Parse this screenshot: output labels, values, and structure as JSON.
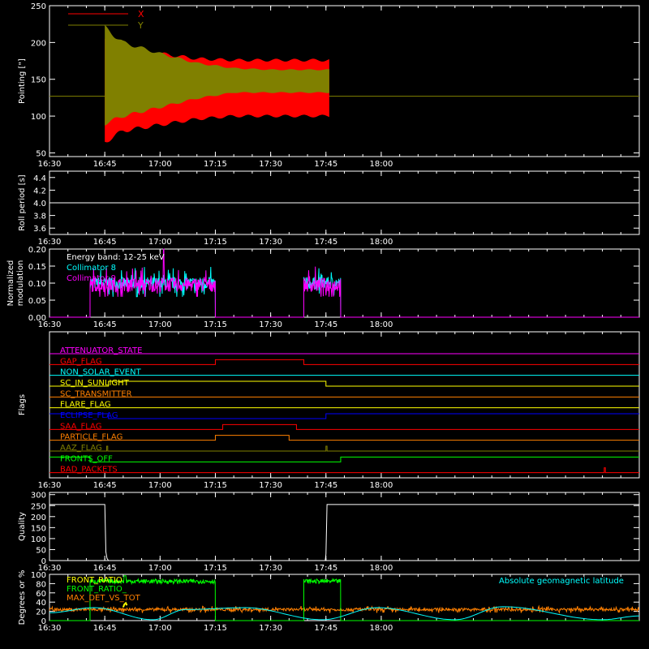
{
  "chart_data": [
    {
      "id": "pointing",
      "type": "area",
      "ylabel": "Pointing [\"]",
      "ylim": [
        45,
        250
      ],
      "yticks": [
        "50",
        "100",
        "150",
        "200",
        "250"
      ],
      "ytick_values": [
        50,
        100,
        150,
        200,
        250
      ],
      "xlim": [
        990,
        1150
      ],
      "xticks": [
        "16:30",
        "16:45",
        "17:00",
        "17:15",
        "17:30",
        "17:45",
        "18:00"
      ],
      "xtick_values": [
        990,
        1005,
        1020,
        1035,
        1050,
        1065,
        1080
      ],
      "baseline": 127,
      "colors": {
        "X": "#ff0000",
        "Y": "#808000",
        "baseline": "#808000"
      },
      "legend": [
        "X",
        "Y"
      ],
      "legend_placement": "top-left",
      "series": [
        {
          "name": "X",
          "t": [
            1005,
            1010,
            1020,
            1030,
            1040,
            1050,
            1060,
            1066
          ],
          "upper": [
            205,
            190,
            185,
            178,
            176,
            176,
            176,
            176
          ],
          "lower": [
            65,
            80,
            88,
            96,
            100,
            100,
            100,
            100
          ]
        },
        {
          "name": "Y",
          "t": [
            1005,
            1010,
            1020,
            1030,
            1040,
            1050,
            1060,
            1066
          ],
          "upper": [
            220,
            200,
            185,
            172,
            165,
            163,
            163,
            163
          ],
          "lower": [
            90,
            100,
            112,
            124,
            132,
            132,
            132,
            132
          ]
        }
      ]
    },
    {
      "id": "roll",
      "type": "line",
      "ylabel": "Roll period [s]",
      "ylim": [
        3.5,
        4.5
      ],
      "yticks": [
        "3.6",
        "3.8",
        "4.0",
        "4.2",
        "4.4"
      ],
      "ytick_values": [
        3.6,
        3.8,
        4.0,
        4.2,
        4.4
      ],
      "xticks": [
        "16:30",
        "16:45",
        "17:00",
        "17:15",
        "17:30",
        "17:45",
        "18:00"
      ],
      "xtick_values": [
        990,
        1005,
        1020,
        1035,
        1050,
        1065,
        1080
      ],
      "series": [
        {
          "name": "",
          "x": [
            990,
            1150
          ],
          "y": [
            4.0,
            4.0
          ],
          "color": "#ffffff"
        }
      ]
    },
    {
      "id": "modulation",
      "type": "line",
      "ylabel": "Normalized modulation",
      "ylim": [
        0,
        0.2
      ],
      "yticks": [
        "0.00",
        "0.05",
        "0.10",
        "0.15",
        "0.20"
      ],
      "ytick_values": [
        0,
        0.05,
        0.1,
        0.15,
        0.2
      ],
      "xticks": [
        "16:30",
        "16:45",
        "17:00",
        "17:15",
        "17:30",
        "17:45",
        "18:00"
      ],
      "xtick_values": [
        990,
        1005,
        1020,
        1035,
        1050,
        1065,
        1080
      ],
      "annotation": "Energy band: 12-25 keV",
      "legend_placement": "top-left",
      "series": [
        {
          "name": "Collimator 8",
          "color": "#00ffff",
          "segments": [
            [
              1001,
              1035,
              0.1
            ],
            [
              1059,
              1069,
              0.1
            ]
          ],
          "noise": 0.03
        },
        {
          "name": "Collimator 9",
          "color": "#ff00ff",
          "segments": [
            [
              1001,
              1035,
              0.095
            ],
            [
              1059,
              1069,
              0.095
            ]
          ],
          "noise": 0.035,
          "spike": [
            1021,
            0.2
          ]
        }
      ]
    },
    {
      "id": "flags",
      "type": "line",
      "ylabel": "Flags",
      "xticks": [
        "16:30",
        "16:45",
        "17:00",
        "17:15",
        "17:30",
        "17:45",
        "18:00"
      ],
      "xtick_values": [
        990,
        1005,
        1020,
        1035,
        1050,
        1065,
        1080
      ],
      "series": [
        {
          "name": "ATTENUATOR_STATE",
          "color": "#ff00ff",
          "steps": [
            [
              990,
              0
            ],
            [
              1150,
              0
            ]
          ]
        },
        {
          "name": "GAP_FLAG",
          "color": "#ff0000",
          "steps": [
            [
              990,
              0
            ],
            [
              1035,
              1
            ],
            [
              1059,
              0
            ]
          ]
        },
        {
          "name": "NON_SOLAR_EVENT",
          "color": "#00ffff",
          "steps": [
            [
              990,
              0
            ],
            [
              1150,
              0
            ]
          ]
        },
        {
          "name": "SC_IN_SUNLIGHT",
          "color": "#ffff00",
          "steps": [
            [
              990,
              0
            ],
            [
              1006,
              1
            ],
            [
              1065,
              0
            ]
          ]
        },
        {
          "name": "SC_TRANSMITTER",
          "color": "#ff8000",
          "steps": [
            [
              990,
              0
            ],
            [
              1150,
              0
            ]
          ]
        },
        {
          "name": "FLARE_FLAG",
          "color": "#ffff00",
          "steps": [
            [
              990,
              0
            ],
            [
              1150,
              0
            ]
          ]
        },
        {
          "name": "ECLIPSE_FLAG",
          "color": "#0000ff",
          "steps": [
            [
              990,
              1
            ],
            [
              1006,
              0
            ],
            [
              1065,
              1
            ]
          ]
        },
        {
          "name": "SAA_FLAG",
          "color": "#ff0000",
          "steps": [
            [
              990,
              0
            ],
            [
              1037,
              1
            ],
            [
              1057,
              0
            ]
          ]
        },
        {
          "name": "PARTICLE_FLAG",
          "color": "#ff8000",
          "steps": [
            [
              990,
              0
            ],
            [
              1035,
              1
            ],
            [
              1055,
              0
            ]
          ]
        },
        {
          "name": "AAZ_FLAG",
          "color": "#808000",
          "steps": [
            [
              990,
              0
            ],
            [
              1005.5,
              1
            ],
            [
              1005.8,
              0
            ],
            [
              1065.0,
              1
            ],
            [
              1065.3,
              0
            ]
          ]
        },
        {
          "name": "FRONTS_OFF",
          "color": "#00ff00",
          "steps": [
            [
              990,
              1
            ],
            [
              1001,
              0
            ],
            [
              1069,
              1
            ]
          ]
        },
        {
          "name": "BAD_PACKETS",
          "color": "#ff0000",
          "steps": [
            [
              990,
              0
            ],
            [
              1140.5,
              1
            ],
            [
              1140.8,
              0
            ]
          ]
        }
      ]
    },
    {
      "id": "quality",
      "type": "line",
      "ylabel": "Quality",
      "ylim": [
        0,
        310
      ],
      "yticks": [
        "0",
        "50",
        "100",
        "150",
        "200",
        "250",
        "300"
      ],
      "ytick_values": [
        0,
        50,
        100,
        150,
        200,
        250,
        300
      ],
      "xticks": [
        "16:30",
        "16:45",
        "17:00",
        "17:15",
        "17:30",
        "17:45",
        "18:00"
      ],
      "xtick_values": [
        990,
        1005,
        1020,
        1035,
        1050,
        1065,
        1080
      ],
      "series": [
        {
          "name": "",
          "color": "#ffffff",
          "x": [
            990,
            1005,
            1005.3,
            1005.6,
            1006,
            1064.8,
            1065,
            1065.3,
            1150
          ],
          "y": [
            255,
            255,
            40,
            10,
            0,
            0,
            30,
            255,
            255
          ]
        }
      ]
    },
    {
      "id": "ratios",
      "type": "line",
      "ylabel": "Degrees or %",
      "ylim": [
        0,
        100
      ],
      "yticks": [
        "0",
        "20",
        "40",
        "60",
        "80",
        "100"
      ],
      "ytick_values": [
        0,
        20,
        40,
        60,
        80,
        100
      ],
      "xticks": [
        "16:30",
        "16:45",
        "17:00",
        "17:15",
        "17:30",
        "17:45",
        "18:00"
      ],
      "xtick_values": [
        990,
        1005,
        1020,
        1035,
        1050,
        1065,
        1080
      ],
      "annotation": "Absolute geomagnetic latitude",
      "legend_placement": "top-left",
      "series": [
        {
          "name": "FRONT_RATIO",
          "color": "#ffff00",
          "points": [
            [
              1010,
              29
            ],
            [
              1010.3,
              35
            ],
            [
              1010.7,
              38
            ],
            [
              1011,
              33
            ]
          ]
        },
        {
          "name": "FRONT_RATIO_",
          "color": "#00ff00",
          "segments": [
            [
              1001,
              1035,
              85
            ],
            [
              1059,
              1069,
              85
            ]
          ],
          "noise": 8
        },
        {
          "name": "MAX_DET_VS_TOT",
          "color": "#ff8000",
          "base": 24,
          "noise": 5
        },
        {
          "name": "Absolute geomagnetic latitude",
          "color": "#00ffff",
          "x": [
            990,
            1002,
            1018,
            1027,
            1043,
            1064,
            1079,
            1100,
            1113,
            1140,
            1150
          ],
          "y": [
            17,
            28,
            2,
            24,
            28,
            2,
            28,
            2,
            30,
            2,
            10
          ]
        }
      ]
    }
  ]
}
